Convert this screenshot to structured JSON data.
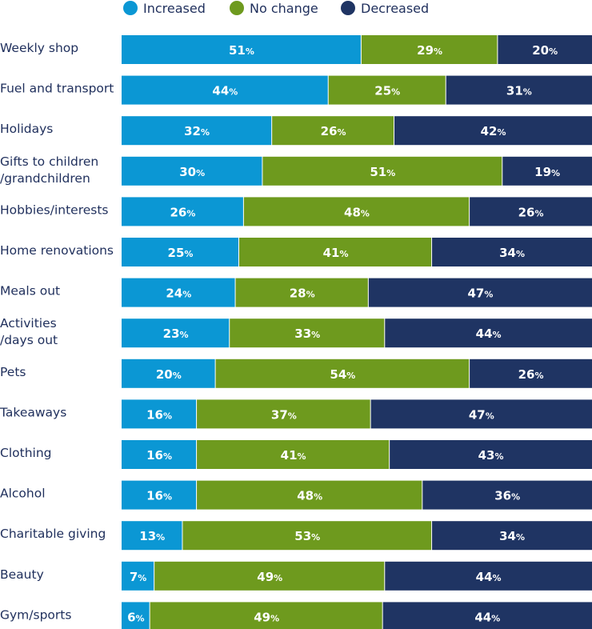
{
  "chart_data": {
    "type": "bar",
    "orientation": "horizontal",
    "stacked": true,
    "title": "",
    "xlabel": "",
    "ylabel": "",
    "xlim": [
      0,
      100
    ],
    "legend_position": "top",
    "value_suffix": "%",
    "categories": [
      [
        "Weekly shop"
      ],
      [
        "Fuel and transport"
      ],
      [
        "Holidays"
      ],
      [
        "Gifts to children",
        "/grandchildren"
      ],
      [
        "Hobbies/interests"
      ],
      [
        "Home renovations"
      ],
      [
        "Meals out"
      ],
      [
        "Activities",
        "/days out"
      ],
      [
        "Pets"
      ],
      [
        "Takeaways"
      ],
      [
        "Clothing"
      ],
      [
        "Alcohol"
      ],
      [
        "Charitable giving"
      ],
      [
        "Beauty"
      ],
      [
        "Gym/sports"
      ]
    ],
    "series": [
      {
        "name": "Increased",
        "color": "#0b97d4",
        "values": [
          51,
          44,
          32,
          30,
          26,
          25,
          24,
          23,
          20,
          16,
          16,
          16,
          13,
          7,
          6
        ]
      },
      {
        "name": "No change",
        "color": "#6e9a1e",
        "values": [
          29,
          25,
          26,
          51,
          48,
          41,
          28,
          33,
          54,
          37,
          41,
          48,
          53,
          49,
          49
        ]
      },
      {
        "name": "Decreased",
        "color": "#1f3463",
        "values": [
          20,
          31,
          42,
          19,
          26,
          34,
          47,
          44,
          26,
          47,
          43,
          36,
          34,
          44,
          44
        ]
      }
    ]
  }
}
